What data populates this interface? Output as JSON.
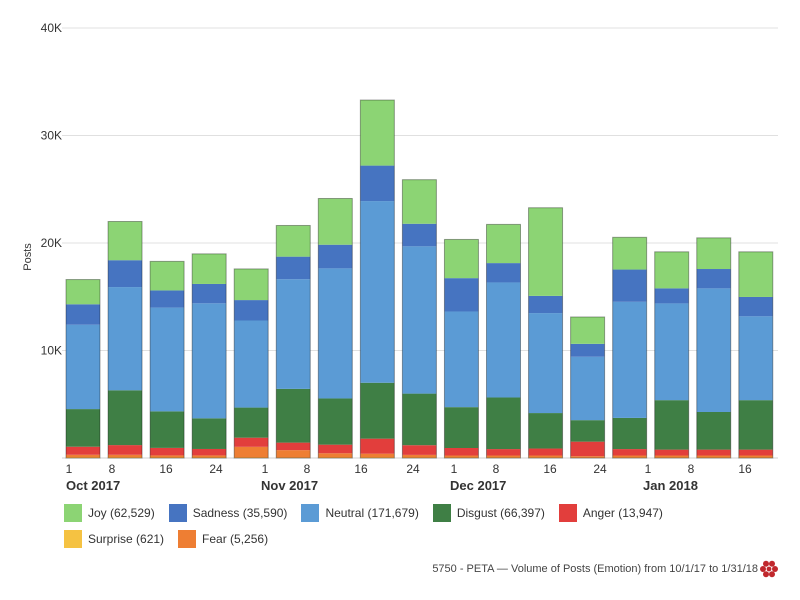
{
  "chart_data": {
    "type": "bar",
    "stacked": true,
    "ylabel": "Posts",
    "xlabel": "",
    "ylim": [
      0,
      40000
    ],
    "y_ticks": [
      0,
      10000,
      20000,
      30000,
      40000
    ],
    "y_tick_labels": [
      "",
      "10K",
      "20K",
      "30K",
      "40K"
    ],
    "categories": [
      "Oct 1",
      "Oct 8",
      "Oct 15",
      "Oct 22",
      "Oct 29",
      "Nov 5",
      "Nov 12",
      "Nov 19",
      "Nov 26",
      "Dec 3",
      "Dec 10",
      "Dec 17",
      "Dec 24",
      "Dec 31",
      "Jan 7",
      "Jan 14",
      "Jan 21"
    ],
    "x_tick_labels": [
      "1",
      "8",
      "16",
      "24",
      "1",
      "8",
      "16",
      "24",
      "1",
      "8",
      "16",
      "24",
      "1",
      "8",
      "16"
    ],
    "month_labels": [
      "Oct 2017",
      "Nov 2017",
      "Dec 2017",
      "Jan 2018"
    ],
    "grid": true,
    "legend_position": "bottom",
    "series": [
      {
        "name": "Surprise (621)",
        "color": "#f5c242",
        "values": [
          50,
          50,
          40,
          40,
          40,
          30,
          40,
          50,
          40,
          30,
          30,
          30,
          20,
          30,
          30,
          30,
          30
        ]
      },
      {
        "name": "Fear (5,256)",
        "color": "#ee7e33",
        "values": [
          250,
          250,
          200,
          200,
          1000,
          700,
          400,
          350,
          250,
          200,
          200,
          200,
          150,
          200,
          200,
          200,
          200
        ]
      },
      {
        "name": "Anger (13,947)",
        "color": "#e23e3c",
        "values": [
          750,
          900,
          700,
          600,
          850,
          700,
          800,
          1400,
          900,
          700,
          600,
          650,
          1350,
          600,
          550,
          550,
          550
        ]
      },
      {
        "name": "Disgust (66,397)",
        "color": "#3f7f45",
        "values": [
          3500,
          5100,
          3400,
          2850,
          2800,
          5000,
          4300,
          5200,
          4800,
          3800,
          4800,
          3300,
          2000,
          2900,
          4600,
          3500,
          4600
        ]
      },
      {
        "name": "Neutral (171,679)",
        "color": "#5b9bd5",
        "values": [
          7850,
          9600,
          9650,
          10700,
          8100,
          10200,
          12100,
          16900,
          13700,
          8900,
          10700,
          9300,
          5900,
          10800,
          9000,
          11500,
          7800
        ]
      },
      {
        "name": "Sadness (35,590)",
        "color": "#4674c1",
        "values": [
          1900,
          2500,
          1600,
          1800,
          1900,
          2100,
          2200,
          3300,
          2100,
          3100,
          1800,
          1600,
          1200,
          3000,
          1400,
          1800,
          1800
        ]
      },
      {
        "name": "Joy (62,529)",
        "color": "#8cd474",
        "values": [
          2300,
          3600,
          2700,
          2800,
          2900,
          2900,
          4300,
          6100,
          4100,
          3600,
          3600,
          8200,
          2500,
          3000,
          3400,
          2900,
          4200
        ]
      }
    ]
  },
  "legend": [
    {
      "label": "Joy (62,529)",
      "color": "#8cd474"
    },
    {
      "label": "Sadness (35,590)",
      "color": "#4674c1"
    },
    {
      "label": "Neutral (171,679)",
      "color": "#5b9bd5"
    },
    {
      "label": "Disgust (66,397)",
      "color": "#3f7f45"
    },
    {
      "label": "Anger (13,947)",
      "color": "#e23e3c"
    },
    {
      "label": "Surprise (621)",
      "color": "#f5c242"
    },
    {
      "label": "Fear (5,256)",
      "color": "#ee7e33"
    }
  ],
  "footer": {
    "caption": "5750 - PETA — Volume of Posts (Emotion) from 10/1/17 to 1/31/18",
    "logo_icon": "flower-logo-icon",
    "logo_color": "#c0282d"
  }
}
